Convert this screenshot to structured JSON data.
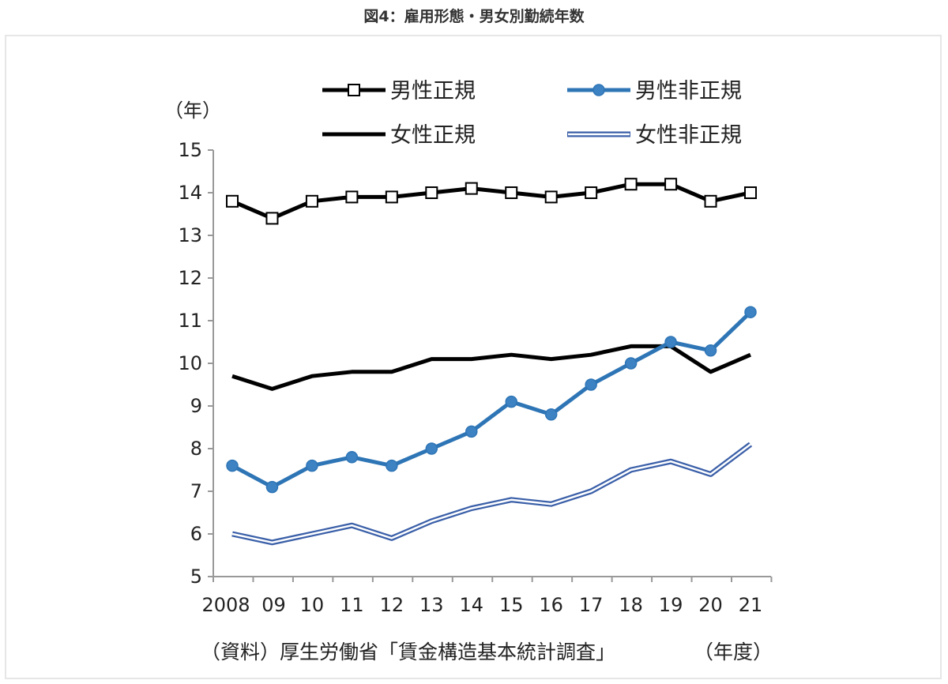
{
  "page": {
    "title": "図4：雇用形態・男女別勤続年数"
  },
  "chart_data": {
    "type": "line",
    "title": "",
    "ylabel": "（年）",
    "xlabel": "（年度）",
    "source": "（資料）厚生労働省「賃金構造基本統計調査」",
    "ylim": [
      5,
      15
    ],
    "yticks": [
      "5",
      "6",
      "7",
      "8",
      "9",
      "10",
      "11",
      "12",
      "13",
      "14",
      "15"
    ],
    "categories": [
      "2008",
      "09",
      "10",
      "11",
      "12",
      "13",
      "14",
      "15",
      "16",
      "17",
      "18",
      "19",
      "20",
      "21"
    ],
    "grid": false,
    "legend_position": "top",
    "series": [
      {
        "name": "男性正規",
        "style": "square-marker",
        "color": "#000000",
        "values": [
          13.8,
          13.4,
          13.8,
          13.9,
          13.9,
          14.0,
          14.1,
          14.0,
          13.9,
          14.0,
          14.2,
          14.2,
          13.8,
          14.0
        ]
      },
      {
        "name": "男性非正規",
        "style": "circle-marker",
        "color": "#2e75b6",
        "values": [
          7.6,
          7.1,
          7.6,
          7.8,
          7.6,
          8.0,
          8.4,
          9.1,
          8.8,
          9.5,
          10.0,
          10.5,
          10.3,
          11.2
        ]
      },
      {
        "name": "女性正規",
        "style": "solid",
        "color": "#000000",
        "values": [
          9.7,
          9.4,
          9.7,
          9.8,
          9.8,
          10.1,
          10.1,
          10.2,
          10.1,
          10.2,
          10.4,
          10.4,
          9.8,
          10.2
        ]
      },
      {
        "name": "女性非正規",
        "style": "double",
        "color": "#3a5fa8",
        "values": [
          6.0,
          5.8,
          6.0,
          6.2,
          5.9,
          6.3,
          6.6,
          6.8,
          6.7,
          7.0,
          7.5,
          7.7,
          7.4,
          8.1
        ]
      }
    ]
  }
}
